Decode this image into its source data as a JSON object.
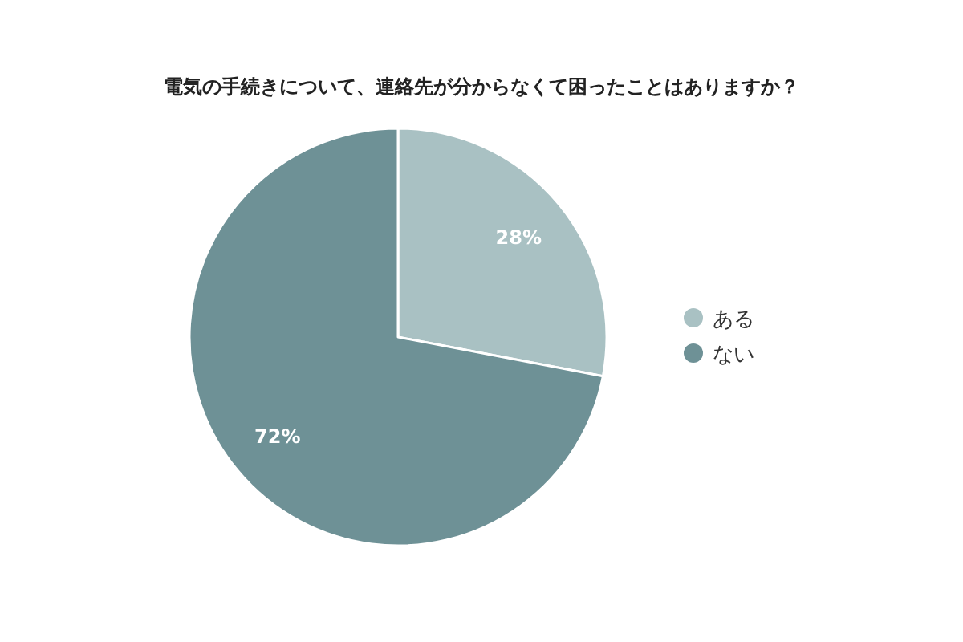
{
  "chart_data": {
    "type": "pie",
    "title": "電気の手続きについて、連絡先が分からなくて困ったことはありますか？",
    "categories": [
      "ある",
      "ない"
    ],
    "values": [
      28,
      72
    ],
    "colors": [
      "#a9c1c3",
      "#6e9196"
    ],
    "value_labels": [
      "28%",
      "72%"
    ],
    "legend": "right"
  }
}
